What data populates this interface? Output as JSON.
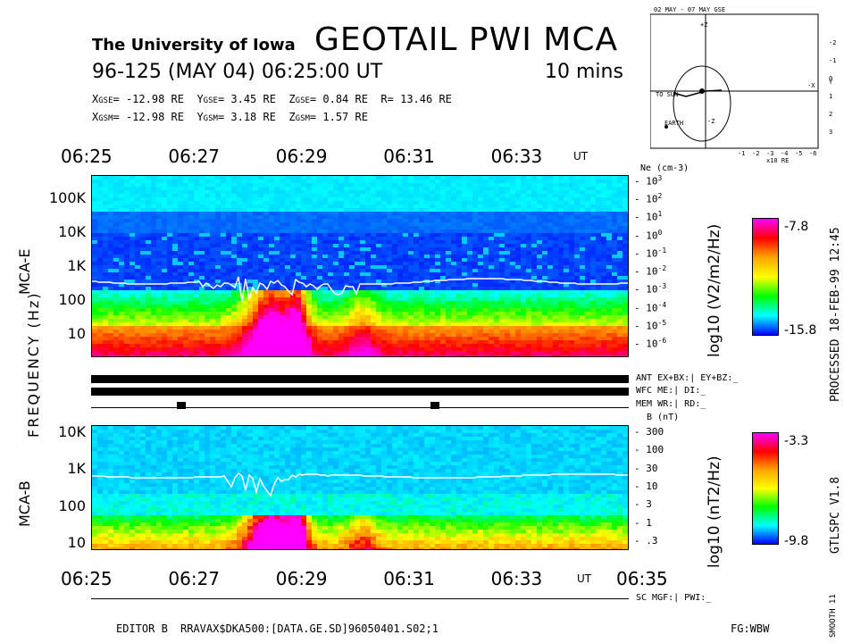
{
  "header": {
    "institution": "The University of Iowa",
    "title": "GEOTAIL PWI MCA",
    "datetime": "96-125 (MAY 04) 06:25:00 UT",
    "duration": "10 mins",
    "coords": [
      [
        "X",
        "GSE",
        "= -12.98 RE"
      ],
      [
        "Y",
        "GSE",
        "=   3.45 RE"
      ],
      [
        "Z",
        "GSE",
        "=   0.84 RE"
      ],
      [
        "R",
        "",
        "= 13.46 RE"
      ],
      [
        "X",
        "GSM",
        "= -12.98 RE"
      ],
      [
        "Y",
        "GSM",
        "=   3.18 RE"
      ],
      [
        "Z",
        "GSM",
        "=   1.57 RE"
      ]
    ]
  },
  "orbit_plot": {
    "title": "02 MAY - 07 MAY  GSE",
    "x_ticks": [
      "-1",
      "-2",
      "-3",
      "-4",
      "-5",
      "-6"
    ],
    "x_unit": "x10 RE",
    "y_ticks": [
      "-2",
      "-1",
      "0",
      "1",
      "2",
      "3"
    ],
    "label_sun": "TO SUN",
    "label_earth": "EARTH",
    "label_x": "-X",
    "label_y": "Y",
    "label_z": "-Z",
    "label_plus_z": "+Z"
  },
  "time_axis": {
    "top_labels": [
      "06:25",
      "06:27",
      "06:29",
      "06:31",
      "06:33"
    ],
    "bottom_labels": [
      "06:25",
      "06:27",
      "06:29",
      "06:31",
      "06:33",
      "06:35"
    ],
    "unit": "UT"
  },
  "chart_data": [
    {
      "type": "heatmap",
      "name": "MCA-E",
      "ylabel": "MCA-E",
      "yaxis_shared_label": "FREQUENCY (Hz)",
      "y_scale": "log",
      "y_ticks": [
        "100K",
        "10K",
        "1K",
        "100",
        "10"
      ],
      "right_axis_label": "Ne (cm-3)",
      "right_axis_ticks": [
        "10^3",
        "10^2",
        "10^1",
        "10^0",
        "10^-1",
        "10^-2",
        "10^-3",
        "10^-4",
        "10^-5",
        "10^-6"
      ],
      "colorbar_label": "log10 (V2/m2/Hz)",
      "colorbar_range": [
        "-7.8",
        "-15.8"
      ],
      "overlay": "upper-hybrid / plasma frequency trace (white line)"
    },
    {
      "type": "heatmap",
      "name": "MCA-B",
      "ylabel": "MCA-B",
      "y_scale": "log",
      "y_ticks": [
        "10K",
        "1K",
        "100",
        "10"
      ],
      "right_axis_label": "B (nT)",
      "right_axis_ticks": [
        "300",
        "100",
        "30",
        "10",
        "3",
        "1",
        ".3"
      ],
      "colorbar_label": "log10 (nT2/Hz)",
      "colorbar_range": [
        "-3.3",
        "-9.8"
      ],
      "overlay": "electron cyclotron frequency trace (white line)"
    }
  ],
  "status_lines": {
    "ant": "ANT EX+BX:|  EY+BZ:_",
    "wfc": "WFC ME:|     DI:_",
    "mem": "MEM WR:|     RD:_",
    "sc": "SC MGF:|  PWI:_"
  },
  "side_text": {
    "processed": "PROCESSED 18-FEB-99  12:45",
    "version": "GTLSPC   V1.8",
    "smooth": "SMOOTH 11"
  },
  "footer": {
    "editor": "EDITOR B",
    "file": "RRAVAX$DKA500:[DATA.GE.SD]96050401.S02;1",
    "fg": "FG:WBW"
  },
  "colors": {
    "colorbar": [
      "#ff00ff",
      "#ff0000",
      "#ffa500",
      "#ffff00",
      "#00ff00",
      "#00ffff",
      "#0000ff"
    ]
  }
}
